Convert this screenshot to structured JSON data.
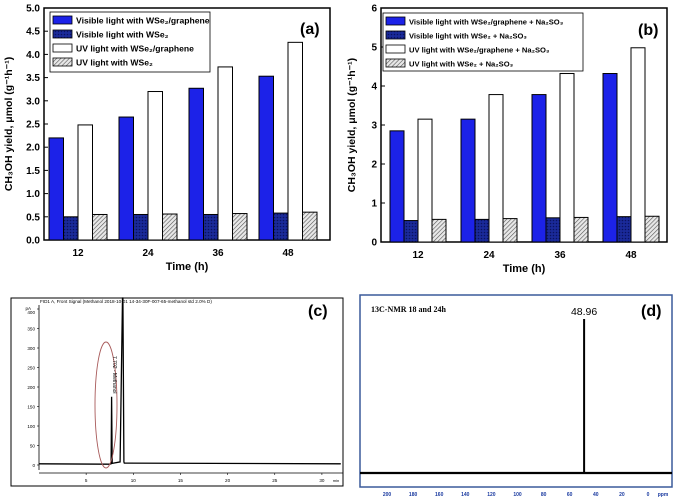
{
  "chart_data": [
    {
      "panel": "(a)",
      "type": "bar",
      "xlabel": "Time (h)",
      "ylabel": "CH₃OH yield, μmol (g⁻¹h⁻¹)",
      "categories": [
        "12",
        "24",
        "36",
        "48"
      ],
      "ylim": [
        0,
        5
      ],
      "yticks": [
        "0.0",
        "0.5",
        "1.0",
        "1.5",
        "2.0",
        "2.5",
        "3.0",
        "3.5",
        "4.0",
        "4.5",
        "5.0"
      ],
      "legend_placement": "top-left",
      "series": [
        {
          "name": "Visible light with WSe₂/graphene",
          "style": "blue",
          "values": [
            2.2,
            2.65,
            3.27,
            3.53
          ]
        },
        {
          "name": "Visible light with WSe₂",
          "style": "darkblue",
          "values": [
            0.5,
            0.55,
            0.55,
            0.58
          ]
        },
        {
          "name": "UV light with WSe₂/graphene",
          "style": "white",
          "values": [
            2.48,
            3.2,
            3.73,
            4.26
          ]
        },
        {
          "name": "UV light with WSe₂",
          "style": "hatch",
          "values": [
            0.55,
            0.56,
            0.57,
            0.6
          ]
        }
      ]
    },
    {
      "panel": "(b)",
      "type": "bar",
      "xlabel": "Time (h)",
      "ylabel": "CH₃OH yield, μmol (g⁻¹h⁻¹)",
      "categories": [
        "12",
        "24",
        "36",
        "48"
      ],
      "ylim": [
        0,
        6
      ],
      "yticks": [
        "0",
        "1",
        "2",
        "3",
        "4",
        "5",
        "6"
      ],
      "legend_placement": "top-left",
      "series": [
        {
          "name": "Visible light with WSe₂/graphene + Na₂SO₃",
          "style": "blue",
          "values": [
            2.85,
            3.15,
            3.78,
            4.32
          ]
        },
        {
          "name": "Visible light with WSe₂ + Na₂SO₃",
          "style": "darkblue",
          "values": [
            0.55,
            0.58,
            0.62,
            0.65
          ]
        },
        {
          "name": "UV light with WSe₂/graphene + Na₂SO₃",
          "style": "white",
          "values": [
            3.15,
            3.78,
            4.32,
            4.98
          ]
        },
        {
          "name": "UV light with WSe₂ + Na₂SO₃",
          "style": "hatch",
          "values": [
            0.58,
            0.6,
            0.63,
            0.66
          ]
        }
      ]
    },
    {
      "panel": "(c)",
      "type": "line",
      "title": "FID1 A, Front Signal (Methanol 2018-10-01 14-34-30F-007-65-methanol std 2.0% D)",
      "yunit": "pA",
      "xunit": "min",
      "ylim": [
        0,
        400
      ],
      "xlim": [
        0,
        32
      ],
      "yticks": [
        "0",
        "50",
        "100",
        "150",
        "200",
        "250",
        "300",
        "350",
        "400"
      ],
      "xticks": [
        "5",
        "10",
        "15",
        "20",
        "25",
        "30"
      ],
      "peak_label": "7.702 - Methanol",
      "x": [
        0,
        7.5,
        7.65,
        7.702,
        7.76,
        8.6,
        8.85,
        8.9,
        9.0,
        9.05,
        32
      ],
      "y": [
        3,
        2,
        3,
        175,
        4,
        8,
        430,
        430,
        8,
        5,
        3
      ]
    },
    {
      "panel": "(d)",
      "type": "line",
      "title": "13C-NMR  18 and  24h",
      "xunit": "ppm",
      "xticks": [
        "200",
        "180",
        "160",
        "140",
        "120",
        "100",
        "80",
        "60",
        "40",
        "20",
        "0"
      ],
      "xlim": [
        220,
        -10
      ],
      "peak_label": "48.96",
      "peak_ppm": 48.96
    }
  ]
}
